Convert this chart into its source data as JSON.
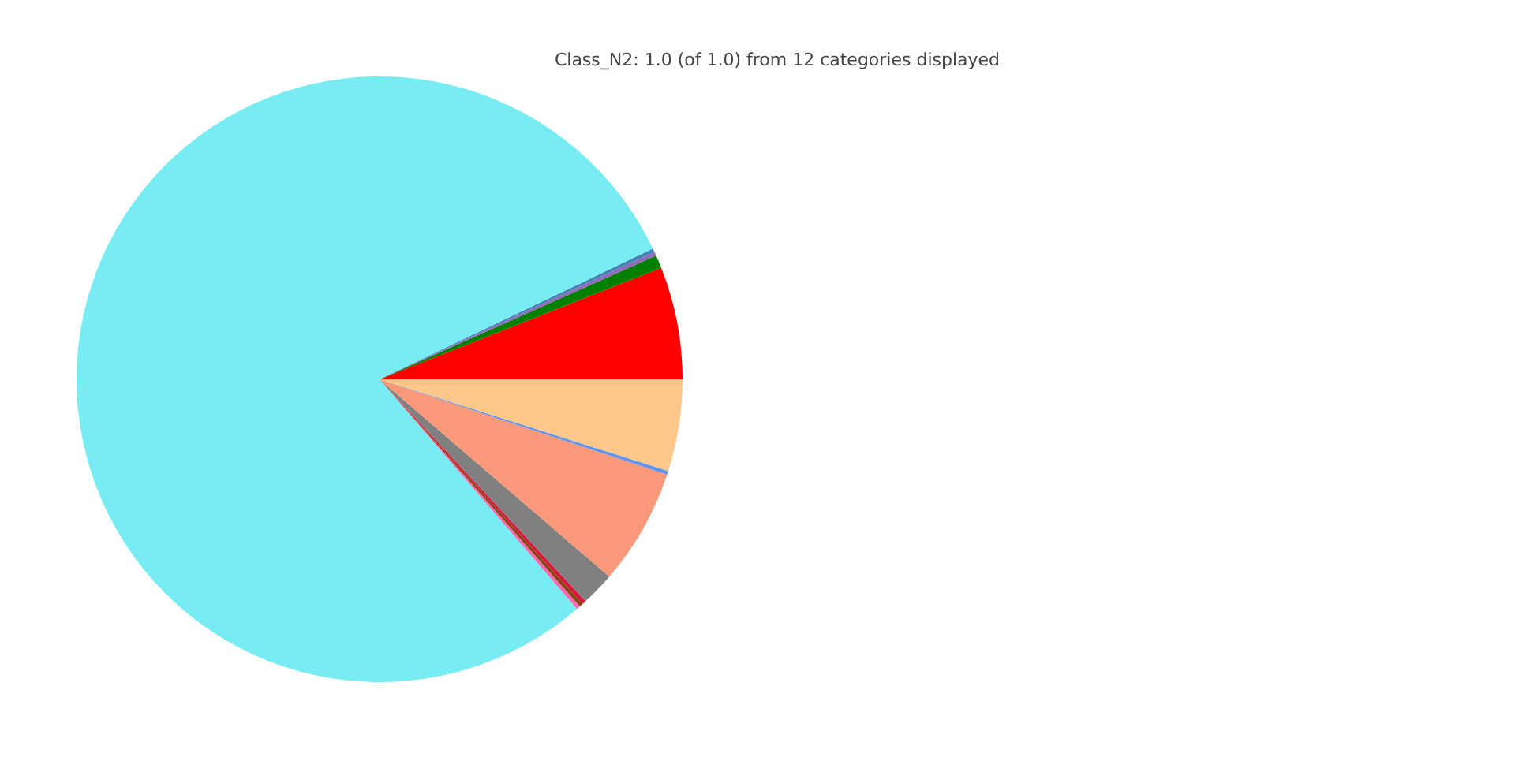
{
  "chart_data": {
    "type": "pie",
    "title": "Class_N2: 1.0 (of 1.0) from 12 categories displayed",
    "categories": [
      null,
      null,
      null,
      null,
      null,
      null,
      null,
      null,
      null,
      null,
      null,
      null
    ],
    "values": [
      6.0,
      0.7,
      0.2,
      0.2,
      79.2,
      0.2,
      0.2,
      0.2,
      1.8,
      6.2,
      0.2,
      4.9
    ],
    "colors": [
      "#ff0000",
      "#008000",
      "#9467bd",
      "#4682b4",
      "#78ecf3",
      "#ff69b4",
      "#8b4513",
      "#dc143c",
      "#808080",
      "#f99979",
      "#6495ed",
      "#fdc88a"
    ]
  }
}
